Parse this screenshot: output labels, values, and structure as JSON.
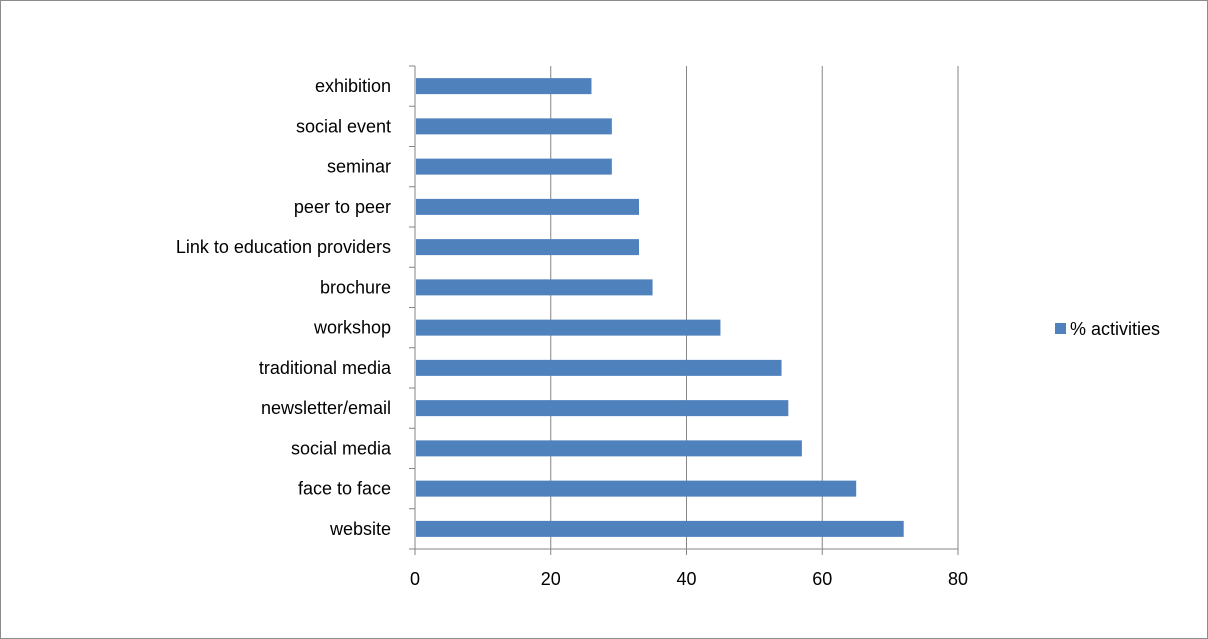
{
  "chart_data": {
    "type": "bar",
    "orientation": "horizontal",
    "categories": [
      "website",
      "face to face",
      "social media",
      "newsletter/email",
      "traditional media",
      "workshop",
      "brochure",
      "Link to education providers",
      "peer to peer",
      "seminar",
      "social event",
      "exhibition"
    ],
    "series": [
      {
        "name": "% activities",
        "values": [
          72,
          65,
          57,
          55,
          54,
          45,
          35,
          33,
          33,
          29,
          29,
          26
        ],
        "color": "#4F81BD"
      }
    ],
    "xlim": [
      0,
      80
    ],
    "xticks": [
      0,
      20,
      40,
      60,
      80
    ],
    "grid": "vertical",
    "legend": "right"
  }
}
